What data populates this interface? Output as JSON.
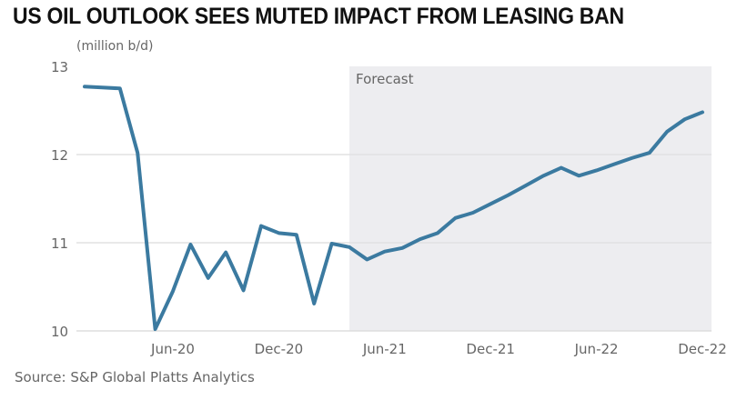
{
  "chart_data": {
    "type": "line",
    "title": "US OIL OUTLOOK SEES MUTED IMPACT FROM LEASING BAN",
    "ylabel": "(million b/d)",
    "source": "Source: S&P Global Platts Analytics",
    "ylim": [
      10,
      13
    ],
    "yticks": [
      "10",
      "11",
      "12",
      "13"
    ],
    "xtick_labels": [
      "Jun-20",
      "Dec-20",
      "Jun-21",
      "Dec-21",
      "Jun-22",
      "Dec-22"
    ],
    "grid": true,
    "forecast_label": "Forecast",
    "forecast_start": "Apr-21",
    "colors": {
      "line": "#3b7aa0",
      "forecast_shade": "#ededf0"
    },
    "x": [
      "Jan-20",
      "Feb-20",
      "Mar-20",
      "Apr-20",
      "May-20",
      "Jun-20",
      "Jul-20",
      "Aug-20",
      "Sep-20",
      "Oct-20",
      "Nov-20",
      "Dec-20",
      "Jan-21",
      "Feb-21",
      "Mar-21",
      "Apr-21",
      "May-21",
      "Jun-21",
      "Jul-21",
      "Aug-21",
      "Sep-21",
      "Oct-21",
      "Nov-21",
      "Dec-21",
      "Jan-22",
      "Feb-22",
      "Mar-22",
      "Apr-22",
      "May-22",
      "Jun-22",
      "Jul-22",
      "Aug-22",
      "Sep-22",
      "Oct-22",
      "Nov-22",
      "Dec-22"
    ],
    "values": [
      12.77,
      12.76,
      12.75,
      12.02,
      10.02,
      10.45,
      10.98,
      10.6,
      10.89,
      10.46,
      11.19,
      11.11,
      11.09,
      10.31,
      10.99,
      10.95,
      10.81,
      10.9,
      10.94,
      11.04,
      11.11,
      11.28,
      11.34,
      11.44,
      11.54,
      11.65,
      11.76,
      11.85,
      11.76,
      11.82,
      11.89,
      11.96,
      12.02,
      12.26,
      12.4,
      12.48
    ]
  }
}
